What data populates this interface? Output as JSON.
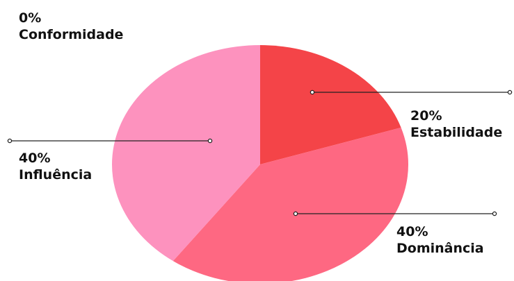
{
  "chart_data": {
    "type": "pie",
    "slices": [
      {
        "label": "Estabilidade",
        "value": 20,
        "value_label": "20%",
        "color": "#f44448"
      },
      {
        "label": "Dominância",
        "value": 40,
        "value_label": "40%",
        "color": "#fe6882"
      },
      {
        "label": "Influência",
        "value": 40,
        "value_label": "40%",
        "color": "#fd92be"
      },
      {
        "label": "Conformidade",
        "value": 0,
        "value_label": "0%",
        "color": "#ffffff"
      }
    ]
  }
}
